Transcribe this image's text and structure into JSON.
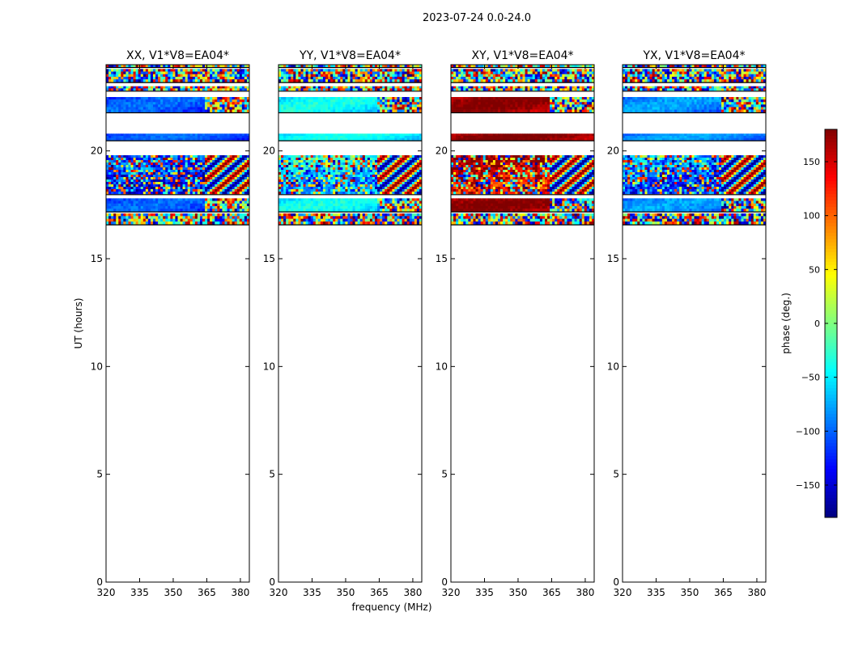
{
  "figure": {
    "suptitle": "2023-07-24 0.0-24.0"
  },
  "chart_data": {
    "type": "heatmap",
    "xlabel": "frequency (MHz)",
    "ylabel": "UT (hours)",
    "xlim": [
      320,
      384
    ],
    "ylim": [
      0,
      24
    ],
    "xticks": [
      320,
      335,
      350,
      365,
      380
    ],
    "yticks": [
      0,
      5,
      10,
      15,
      20
    ],
    "panels": [
      {
        "title": "XX, V1*V8=EA04*",
        "base_hue": -120
      },
      {
        "title": "YY, V1*V8=EA04*",
        "base_hue": -60
      },
      {
        "title": "XY, V1*V8=EA04*",
        "base_hue": 160
      },
      {
        "title": "YX, V1*V8=EA04*",
        "base_hue": -100
      }
    ],
    "data_bands_ut": [
      {
        "from": 16.6,
        "to": 17.1,
        "kind": "noise"
      },
      {
        "from": 17.2,
        "to": 17.8,
        "kind": "smooth_then_noise"
      },
      {
        "from": 18.0,
        "to": 19.8,
        "kind": "ripple"
      },
      {
        "from": 20.5,
        "to": 20.8,
        "kind": "smooth"
      },
      {
        "from": 21.8,
        "to": 22.5,
        "kind": "smooth_then_noise"
      },
      {
        "from": 22.8,
        "to": 23.0,
        "kind": "noise"
      },
      {
        "from": 23.2,
        "to": 23.8,
        "kind": "noise"
      },
      {
        "from": 23.9,
        "to": 24.0,
        "kind": "noise"
      }
    ],
    "colorbar": {
      "label": "phase (deg.)",
      "range": [
        -180,
        180
      ],
      "ticks": [
        -150,
        -100,
        -50,
        0,
        50,
        100,
        150
      ],
      "ticklabels": [
        "−150",
        "−100",
        "−50",
        "0",
        "50",
        "100",
        "150"
      ],
      "colormap": "jet"
    }
  }
}
